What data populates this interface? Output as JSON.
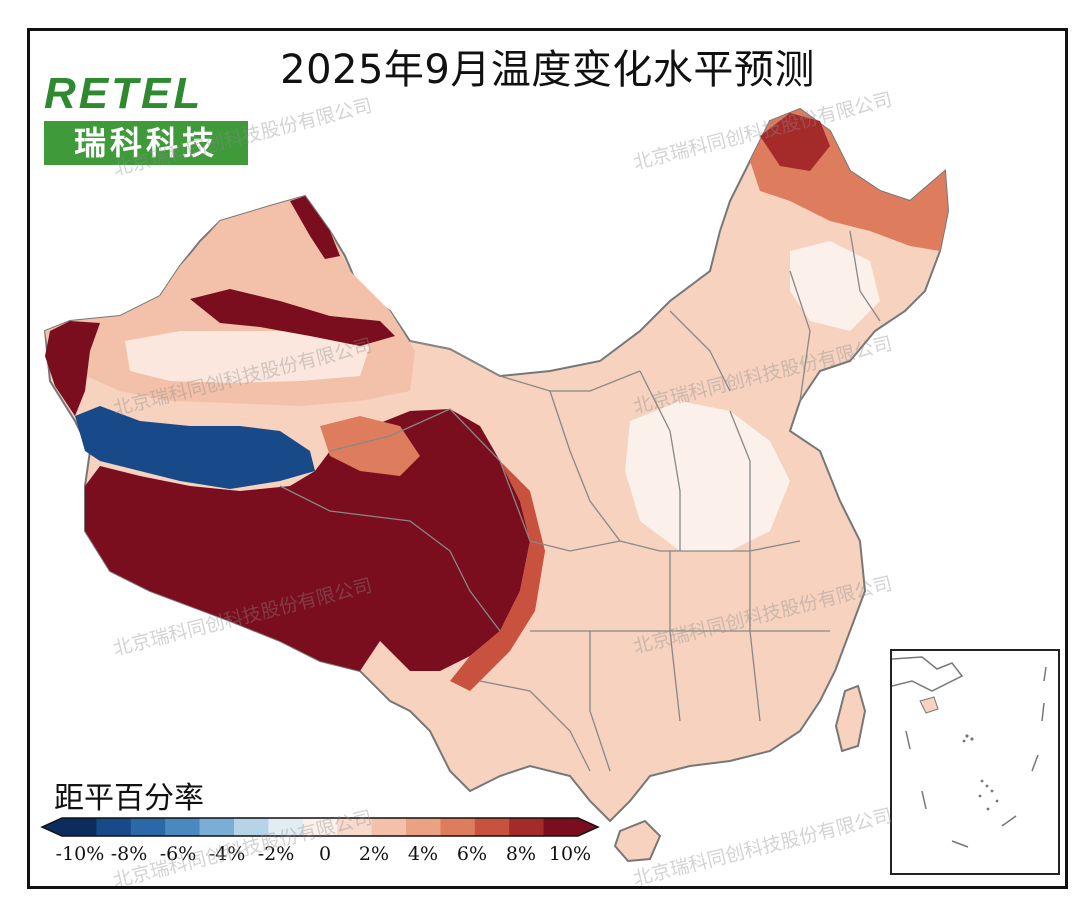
{
  "title": "2025年9月温度变化水平预测",
  "logo": {
    "latin": "RETEL",
    "chinese": "瑞科科技"
  },
  "legend": {
    "title": "距平百分率",
    "ticks": [
      "-10%",
      "-8%",
      "-6%",
      "-4%",
      "-2%",
      "0",
      "2%",
      "4%",
      "6%",
      "8%",
      "10%"
    ],
    "colors": [
      "#0b2c5c",
      "#184a8a",
      "#2a68a8",
      "#4a88c0",
      "#7aaed5",
      "#b6d3e8",
      "#e2ecf3",
      "#fbf0ea",
      "#f8dacb",
      "#f3c1a9",
      "#eba283",
      "#de7d5e",
      "#c8523e",
      "#a52a2a",
      "#7a0d1e"
    ]
  },
  "watermark": "北京瑞科同创科技股份有限公司",
  "regions": {
    "southwest_tibet_qinghai": "#7a0d1e",
    "tarim_band": "#184a8a",
    "northwest_xinjiang": "#f3c1a9",
    "north_heilongjiang": "#c8523e",
    "east_plain": "#fbf0ea",
    "general": "#f6d2bf"
  }
}
